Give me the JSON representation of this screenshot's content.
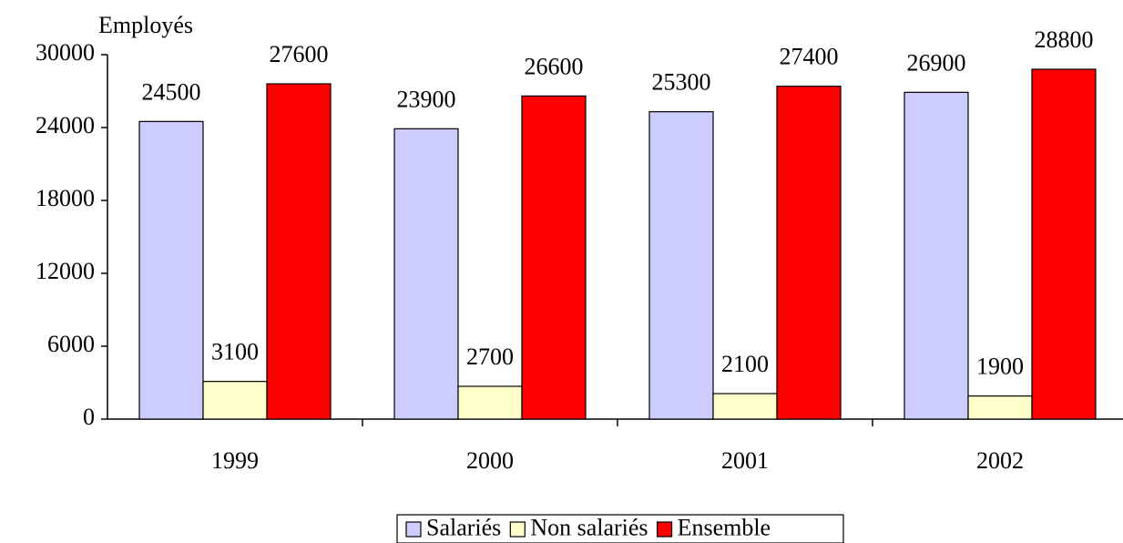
{
  "chart_data": {
    "type": "bar",
    "y_axis_label": "Employés",
    "categories": [
      "1999",
      "2000",
      "2001",
      "2002"
    ],
    "series": [
      {
        "name": "Salariés",
        "color": "#ccccff",
        "values": [
          24500,
          23900,
          25300,
          26900
        ]
      },
      {
        "name": "Non salariés",
        "color": "#ffffcc",
        "values": [
          3100,
          2700,
          2100,
          1900
        ]
      },
      {
        "name": "Ensemble",
        "color": "#ff0000",
        "values": [
          27600,
          26600,
          27400,
          28800
        ]
      }
    ],
    "ylim": [
      0,
      30000
    ],
    "yticks": [
      0,
      6000,
      12000,
      18000,
      24000,
      30000
    ],
    "grid": false,
    "legend": "bottom"
  }
}
